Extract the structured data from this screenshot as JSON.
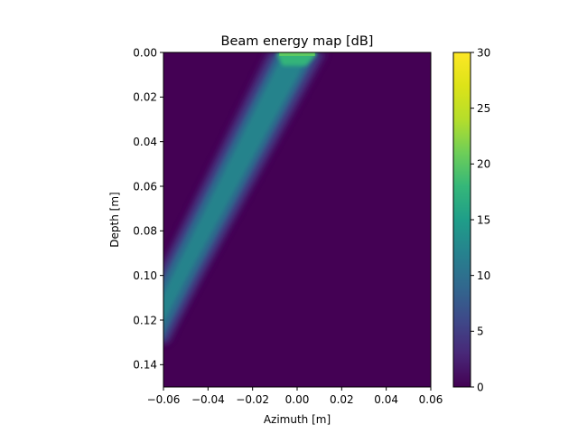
{
  "chart_data": {
    "type": "heatmap",
    "title": "Beam energy map [dB]",
    "xlabel": "Azimuth [m]",
    "ylabel": "Depth [m]",
    "xlim": [
      -0.06,
      0.06
    ],
    "ylim": [
      0.15,
      0.0
    ],
    "y_inverted": true,
    "x_ticks": [
      "−0.06",
      "−0.04",
      "−0.02",
      "0.00",
      "0.02",
      "0.04",
      "0.06"
    ],
    "x_tick_values": [
      -0.06,
      -0.04,
      -0.02,
      0.0,
      0.02,
      0.04,
      0.06
    ],
    "y_ticks": [
      "0.00",
      "0.02",
      "0.04",
      "0.06",
      "0.08",
      "0.10",
      "0.12",
      "0.14"
    ],
    "y_tick_values": [
      0.0,
      0.02,
      0.04,
      0.06,
      0.08,
      0.1,
      0.12,
      0.14
    ],
    "colorbar": {
      "colormap": "viridis",
      "range": [
        0,
        30
      ],
      "ticks": [
        "0",
        "5",
        "10",
        "15",
        "20",
        "25",
        "30"
      ],
      "tick_values": [
        0,
        5,
        10,
        15,
        20,
        25,
        30
      ]
    },
    "background_value": 0,
    "beam": {
      "description_of_shape": "steered beam from surface, narrowing aperture near depth 0, tilted toward negative azimuth",
      "center_path": [
        {
          "depth": 0.0,
          "azimuth": 0.0
        },
        {
          "depth": 0.02,
          "azimuth": -0.0105
        },
        {
          "depth": 0.04,
          "azimuth": -0.021
        },
        {
          "depth": 0.06,
          "azimuth": -0.0315
        },
        {
          "depth": 0.08,
          "azimuth": -0.042
        },
        {
          "depth": 0.1,
          "azimuth": -0.0525
        },
        {
          "depth": 0.115,
          "azimuth": -0.06
        }
      ],
      "peak_value_at_surface": 21,
      "value_at_mid_depth": 14,
      "value_at_deep": 9
    }
  }
}
